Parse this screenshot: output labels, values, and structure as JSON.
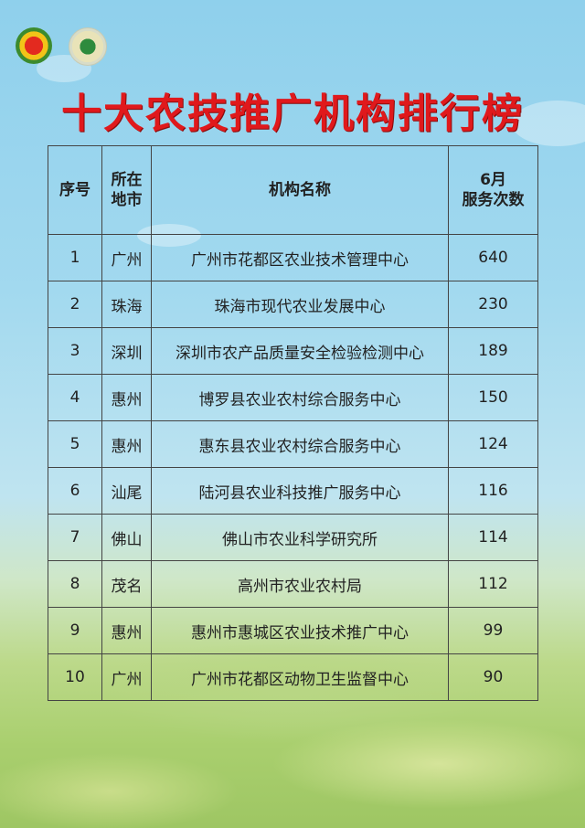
{
  "title": "十大农技推广机构排行榜",
  "table": {
    "headers": {
      "rank": "序号",
      "city_l1": "所在",
      "city_l2": "地市",
      "name": "机构名称",
      "count_l1": "6月",
      "count_l2": "服务次数"
    },
    "rows": [
      {
        "rank": "1",
        "city": "广州",
        "name": "广州市花都区农业技术管理中心",
        "count": "640"
      },
      {
        "rank": "2",
        "city": "珠海",
        "name": "珠海市现代农业发展中心",
        "count": "230"
      },
      {
        "rank": "3",
        "city": "深圳",
        "name": "深圳市农产品质量安全检验检测中心",
        "count": "189"
      },
      {
        "rank": "4",
        "city": "惠州",
        "name": "博罗县农业农村综合服务中心",
        "count": "150"
      },
      {
        "rank": "5",
        "city": "惠州",
        "name": "惠东县农业农村综合服务中心",
        "count": "124"
      },
      {
        "rank": "6",
        "city": "汕尾",
        "name": "陆河县农业科技推广服务中心",
        "count": "116"
      },
      {
        "rank": "7",
        "city": "佛山",
        "name": "佛山市农业科学研究所",
        "count": "114"
      },
      {
        "rank": "8",
        "city": "茂名",
        "name": "高州市农业农村局",
        "count": "112"
      },
      {
        "rank": "9",
        "city": "惠州",
        "name": "惠州市惠城区农业技术推广中心",
        "count": "99"
      },
      {
        "rank": "10",
        "city": "广州",
        "name": "广州市花都区动物卫生监督中心",
        "count": "90"
      }
    ]
  },
  "colors": {
    "title": "#e0191c",
    "sky": "#8fd0ec",
    "field": "#a9cf6e"
  }
}
